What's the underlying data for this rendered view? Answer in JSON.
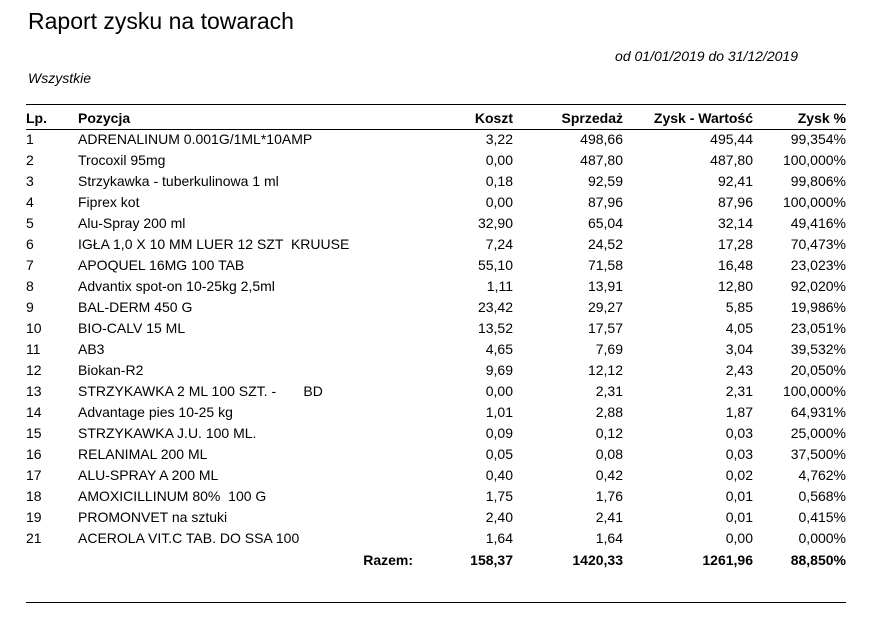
{
  "report": {
    "title": "Raport zysku na towarach",
    "date_range": "od 01/01/2019 do 31/12/2019",
    "filter": "Wszystkie"
  },
  "columns": {
    "lp": "Lp.",
    "position": "Pozycja",
    "cost": "Koszt",
    "sales": "Sprzedaż",
    "profit_value": "Zysk - Wartość",
    "profit_pct": "Zysk %"
  },
  "rows": [
    {
      "lp": "1",
      "name": "ADRENALINUM 0.001G/1ML*10AMP",
      "cost": "3,22",
      "sales": "498,66",
      "profit": "495,44",
      "pct": "99,354%"
    },
    {
      "lp": "2",
      "name": "Trocoxil 95mg",
      "cost": "0,00",
      "sales": "487,80",
      "profit": "487,80",
      "pct": "100,000%"
    },
    {
      "lp": "3",
      "name": "Strzykawka - tuberkulinowa 1 ml",
      "cost": "0,18",
      "sales": "92,59",
      "profit": "92,41",
      "pct": "99,806%"
    },
    {
      "lp": "4",
      "name": "Fiprex kot",
      "cost": "0,00",
      "sales": "87,96",
      "profit": "87,96",
      "pct": "100,000%"
    },
    {
      "lp": "5",
      "name": "Alu-Spray 200 ml",
      "cost": "32,90",
      "sales": "65,04",
      "profit": "32,14",
      "pct": "49,416%"
    },
    {
      "lp": "6",
      "name": "IGŁA 1,0 X 10 MM LUER 12 SZT  KRUUSE",
      "cost": "7,24",
      "sales": "24,52",
      "profit": "17,28",
      "pct": "70,473%"
    },
    {
      "lp": "7",
      "name": "APOQUEL 16MG 100 TAB",
      "cost": "55,10",
      "sales": "71,58",
      "profit": "16,48",
      "pct": "23,023%"
    },
    {
      "lp": "8",
      "name": "Advantix spot-on 10-25kg 2,5ml",
      "cost": "1,11",
      "sales": "13,91",
      "profit": "12,80",
      "pct": "92,020%"
    },
    {
      "lp": "9",
      "name": "BAL-DERM 450 G",
      "cost": "23,42",
      "sales": "29,27",
      "profit": "5,85",
      "pct": "19,986%"
    },
    {
      "lp": "10",
      "name": "BIO-CALV 15 ML",
      "cost": "13,52",
      "sales": "17,57",
      "profit": "4,05",
      "pct": "23,051%"
    },
    {
      "lp": "11",
      "name": "AB3",
      "cost": "4,65",
      "sales": "7,69",
      "profit": "3,04",
      "pct": "39,532%"
    },
    {
      "lp": "12",
      "name": "Biokan-R2",
      "cost": "9,69",
      "sales": "12,12",
      "profit": "2,43",
      "pct": "20,050%"
    },
    {
      "lp": "13",
      "name": "STRZYKAWKA 2 ML 100 SZT. -       BD",
      "cost": "0,00",
      "sales": "2,31",
      "profit": "2,31",
      "pct": "100,000%"
    },
    {
      "lp": "14",
      "name": "Advantage pies 10-25 kg",
      "cost": "1,01",
      "sales": "2,88",
      "profit": "1,87",
      "pct": "64,931%"
    },
    {
      "lp": "15",
      "name": "STRZYKAWKA J.U. 100 ML.",
      "cost": "0,09",
      "sales": "0,12",
      "profit": "0,03",
      "pct": "25,000%"
    },
    {
      "lp": "16",
      "name": "RELANIMAL 200 ML",
      "cost": "0,05",
      "sales": "0,08",
      "profit": "0,03",
      "pct": "37,500%"
    },
    {
      "lp": "17",
      "name": "ALU-SPRAY A 200 ML",
      "cost": "0,40",
      "sales": "0,42",
      "profit": "0,02",
      "pct": "4,762%"
    },
    {
      "lp": "18",
      "name": "AMOXICILLINUM 80%  100 G",
      "cost": "1,75",
      "sales": "1,76",
      "profit": "0,01",
      "pct": "0,568%"
    },
    {
      "lp": "19",
      "name": "PROMONVET na sztuki",
      "cost": "2,40",
      "sales": "2,41",
      "profit": "0,01",
      "pct": "0,415%"
    },
    {
      "lp": "21",
      "name": "ACEROLA VIT.C TAB. DO SSA 100",
      "cost": "1,64",
      "sales": "1,64",
      "profit": "0,00",
      "pct": "0,000%"
    }
  ],
  "totals": {
    "label": "Razem:",
    "cost": "158,37",
    "sales": "1420,33",
    "profit": "1261,96",
    "pct": "88,850%"
  }
}
